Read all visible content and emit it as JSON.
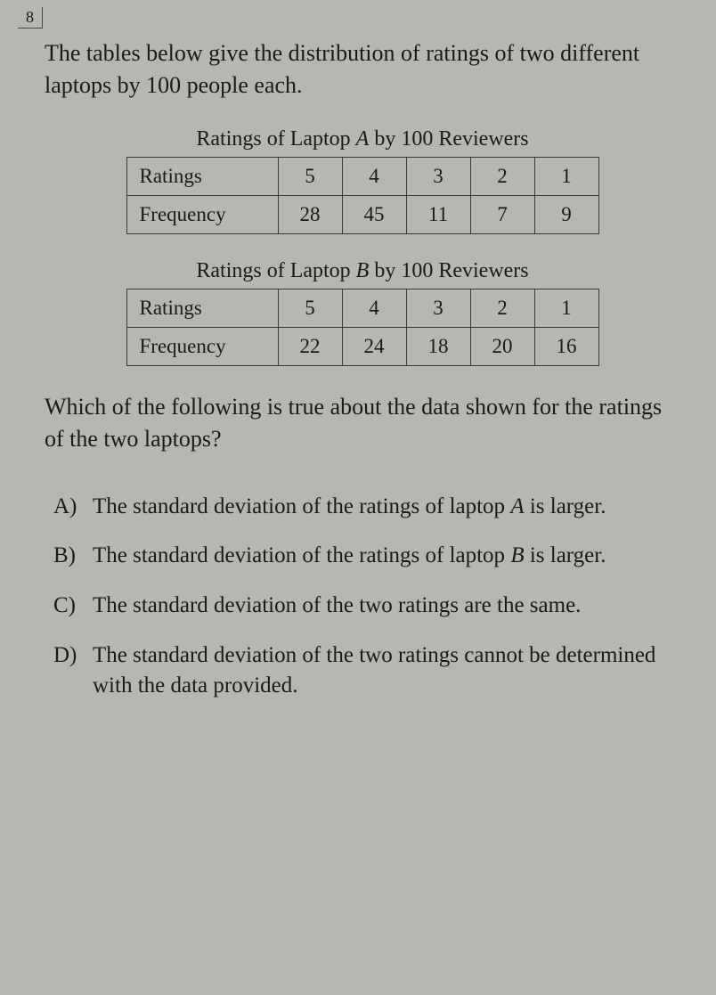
{
  "questionNumber": "8",
  "intro": "The tables below give the distribution of ratings of two different laptops by 100 people each.",
  "tableA": {
    "title_pre": "Ratings of Laptop ",
    "title_letter": "A",
    "title_post": " by 100 Reviewers",
    "rowLabels": [
      "Ratings",
      "Frequency"
    ],
    "ratings": [
      "5",
      "4",
      "3",
      "2",
      "1"
    ],
    "frequency": [
      "28",
      "45",
      "11",
      "7",
      "9"
    ]
  },
  "tableB": {
    "title_pre": "Ratings of Laptop ",
    "title_letter": "B",
    "title_post": " by 100 Reviewers",
    "rowLabels": [
      "Ratings",
      "Frequency"
    ],
    "ratings": [
      "5",
      "4",
      "3",
      "2",
      "1"
    ],
    "frequency": [
      "22",
      "24",
      "18",
      "20",
      "16"
    ]
  },
  "question": "Which of the following is true about the data shown for the ratings of the two laptops?",
  "choices": {
    "A": {
      "letter": "A)",
      "pre": "The standard deviation of the ratings of laptop  ",
      "it": "A",
      "post": " is larger."
    },
    "B": {
      "letter": "B)",
      "pre": "The standard deviation of the ratings of laptop  ",
      "it": "B",
      "post": " is larger."
    },
    "C": {
      "letter": "C)",
      "pre": "The standard deviation of the two ratings are the same.",
      "it": "",
      "post": ""
    },
    "D": {
      "letter": "D)",
      "pre": "The standard deviation of the two ratings cannot be determined with the data provided.",
      "it": "",
      "post": ""
    }
  },
  "colors": {
    "background": "#b8b6b0",
    "text": "#1a1a1a",
    "border": "#3a3a3a"
  }
}
